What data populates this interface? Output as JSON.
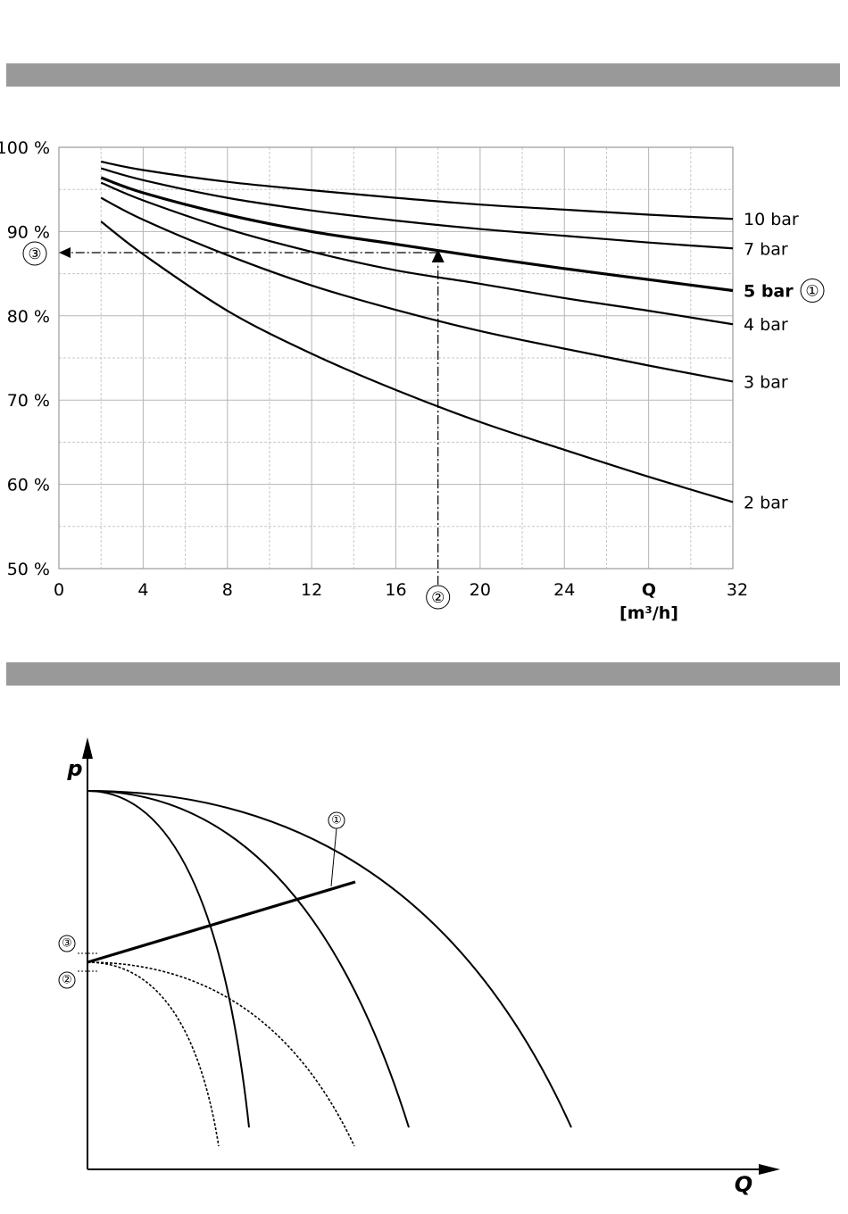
{
  "chart_data": [
    {
      "type": "line",
      "xlim": [
        0,
        32
      ],
      "ylim": [
        50,
        100
      ],
      "grid": true,
      "x_ticks": [
        "0",
        "4",
        "8",
        "12",
        "16",
        "20",
        "24",
        "32"
      ],
      "y_ticks": [
        "100 %",
        "90 %",
        "80 %",
        "70 %",
        "60 %",
        "50 %"
      ],
      "xlabel": "Q",
      "xunit": "[m³/h]",
      "series": [
        {
          "name": "10 bar",
          "bold": false,
          "x": [
            2,
            4,
            8,
            12,
            16,
            20,
            24,
            28,
            32
          ],
          "y": [
            98.3,
            97.3,
            95.9,
            94.9,
            94.0,
            93.2,
            92.6,
            92.0,
            91.5
          ]
        },
        {
          "name": "7 bar",
          "bold": false,
          "x": [
            2,
            4,
            8,
            12,
            16,
            20,
            24,
            28,
            32
          ],
          "y": [
            97.5,
            96.1,
            94.0,
            92.5,
            91.3,
            90.3,
            89.5,
            88.7,
            88.0
          ]
        },
        {
          "name": "5 bar",
          "bold": true,
          "marker": "①",
          "x": [
            2,
            4,
            8,
            12,
            16,
            20,
            24,
            28,
            32
          ],
          "y": [
            96.4,
            94.6,
            92.0,
            90.0,
            88.5,
            87.0,
            85.6,
            84.3,
            83.0
          ]
        },
        {
          "name": "4 bar",
          "bold": false,
          "x": [
            2,
            4,
            8,
            12,
            16,
            20,
            24,
            28,
            32
          ],
          "y": [
            95.8,
            93.7,
            90.3,
            87.6,
            85.4,
            83.8,
            82.1,
            80.6,
            79.0
          ]
        },
        {
          "name": "3 bar",
          "bold": false,
          "x": [
            2,
            4,
            8,
            12,
            16,
            20,
            24,
            28,
            32
          ],
          "y": [
            94.0,
            91.4,
            87.2,
            83.6,
            80.7,
            78.2,
            76.1,
            74.1,
            72.2
          ]
        },
        {
          "name": "2 bar",
          "bold": false,
          "x": [
            2,
            4,
            8,
            12,
            16,
            20,
            24,
            28,
            32
          ],
          "y": [
            91.2,
            87.3,
            80.6,
            75.5,
            71.2,
            67.4,
            64.1,
            60.9,
            57.9
          ]
        }
      ],
      "annotations": [
        {
          "marker": "②",
          "x": 18
        },
        {
          "marker": "③",
          "y": 87.5
        }
      ]
    },
    {
      "type": "line",
      "xlabel": "Q",
      "ylabel": "p",
      "note": "schematic pump curves, no numeric scale",
      "markers": [
        "①",
        "②",
        "③"
      ]
    }
  ]
}
